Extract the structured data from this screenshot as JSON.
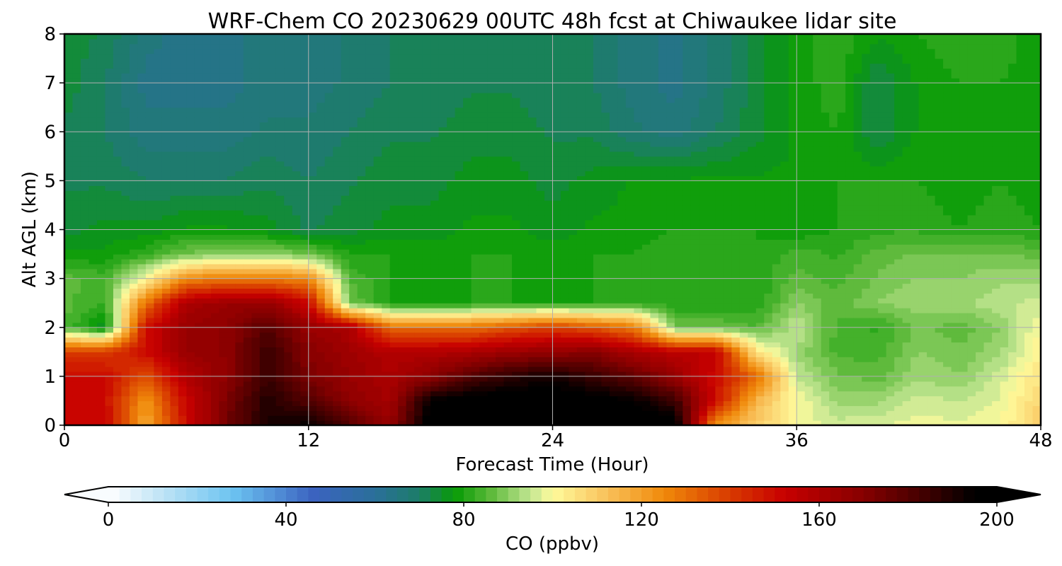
{
  "chart_data": {
    "type": "heatmap",
    "title": "WRF-Chem CO  20230629 00UTC 48h fcst at Chiwaukee lidar site",
    "xlabel": "Forecast Time (Hour)",
    "ylabel": "Alt AGL (km)",
    "xlim": [
      0,
      48
    ],
    "ylim": [
      0,
      8
    ],
    "xticks": [
      0,
      12,
      24,
      36,
      48
    ],
    "yticks": [
      0,
      1,
      2,
      3,
      4,
      5,
      6,
      7,
      8
    ],
    "grid": true,
    "x": [
      0,
      2,
      4,
      6,
      8,
      10,
      12,
      14,
      16,
      18,
      20,
      22,
      24,
      26,
      28,
      30,
      32,
      34,
      36,
      38,
      40,
      42,
      44,
      46,
      48
    ],
    "y": [
      0,
      0.5,
      1,
      1.5,
      2,
      2.5,
      3,
      3.5,
      4,
      5,
      6,
      7,
      8
    ],
    "values": [
      [
        150,
        152,
        118,
        150,
        175,
        190,
        195,
        180,
        165,
        200,
        200,
        200,
        200,
        200,
        200,
        200,
        122,
        110,
        100,
        96,
        97,
        99,
        98,
        100,
        110
      ],
      [
        152,
        150,
        122,
        152,
        172,
        190,
        180,
        168,
        162,
        195,
        200,
        200,
        200,
        198,
        195,
        185,
        150,
        115,
        100,
        92,
        92,
        96,
        95,
        98,
        108
      ],
      [
        150,
        150,
        135,
        158,
        168,
        185,
        172,
        165,
        160,
        168,
        180,
        188,
        192,
        185,
        178,
        165,
        150,
        132,
        95,
        88,
        86,
        92,
        90,
        96,
        105
      ],
      [
        140,
        140,
        150,
        165,
        168,
        185,
        170,
        163,
        158,
        158,
        160,
        165,
        166,
        170,
        160,
        155,
        155,
        105,
        92,
        84,
        84,
        90,
        88,
        92,
        102
      ],
      [
        85,
        75,
        150,
        165,
        168,
        180,
        165,
        160,
        130,
        130,
        130,
        135,
        140,
        135,
        128,
        88,
        88,
        85,
        95,
        84,
        82,
        88,
        86,
        90,
        100
      ],
      [
        86,
        82,
        130,
        160,
        165,
        165,
        152,
        88,
        80,
        78,
        80,
        80,
        80,
        80,
        82,
        80,
        80,
        80,
        90,
        86,
        90,
        92,
        92,
        94,
        96
      ],
      [
        86,
        84,
        100,
        125,
        128,
        128,
        125,
        85,
        80,
        79,
        80,
        80,
        79,
        80,
        82,
        82,
        80,
        80,
        86,
        84,
        88,
        90,
        90,
        92,
        92
      ],
      [
        78,
        78,
        82,
        88,
        90,
        90,
        88,
        80,
        80,
        79,
        80,
        80,
        79,
        80,
        80,
        82,
        82,
        80,
        84,
        82,
        86,
        88,
        88,
        88,
        86
      ],
      [
        74,
        76,
        76,
        78,
        78,
        76,
        72,
        74,
        76,
        76,
        78,
        78,
        76,
        78,
        78,
        80,
        80,
        80,
        78,
        80,
        82,
        82,
        80,
        82,
        80
      ],
      [
        72,
        72,
        70,
        70,
        70,
        72,
        70,
        72,
        74,
        74,
        76,
        76,
        74,
        76,
        78,
        78,
        78,
        78,
        78,
        80,
        80,
        80,
        78,
        80,
        78
      ],
      [
        72,
        70,
        66,
        66,
        66,
        68,
        68,
        70,
        72,
        72,
        74,
        74,
        72,
        72,
        68,
        66,
        70,
        74,
        78,
        80,
        72,
        78,
        78,
        79,
        78
      ],
      [
        74,
        70,
        64,
        64,
        64,
        66,
        66,
        68,
        70,
        70,
        72,
        72,
        70,
        70,
        66,
        64,
        68,
        74,
        78,
        82,
        72,
        78,
        80,
        80,
        78
      ],
      [
        74,
        72,
        66,
        64,
        64,
        66,
        66,
        68,
        70,
        70,
        72,
        72,
        70,
        70,
        66,
        64,
        68,
        74,
        78,
        82,
        78,
        80,
        82,
        82,
        78
      ]
    ],
    "colorbar": {
      "label": "CO  (ppbv)",
      "min": 0,
      "max": 200,
      "step": 2.5,
      "ticks": [
        0,
        40,
        80,
        120,
        160,
        200
      ],
      "extend": "both",
      "colormap": [
        [
          0,
          "#ffffff"
        ],
        [
          12,
          "#bfe3f5"
        ],
        [
          28,
          "#6cc3f1"
        ],
        [
          46,
          "#3b63c0"
        ],
        [
          60,
          "#2b6f9a"
        ],
        [
          70,
          "#1c7d68"
        ],
        [
          78,
          "#089b06"
        ],
        [
          86,
          "#5cb93a"
        ],
        [
          95,
          "#c2e692"
        ],
        [
          100,
          "#fffb9c"
        ],
        [
          112,
          "#f9c25c"
        ],
        [
          125,
          "#f08a0a"
        ],
        [
          140,
          "#d83a00"
        ],
        [
          152,
          "#c80000"
        ],
        [
          170,
          "#860000"
        ],
        [
          185,
          "#3a0000"
        ],
        [
          195,
          "#000000"
        ]
      ]
    }
  }
}
